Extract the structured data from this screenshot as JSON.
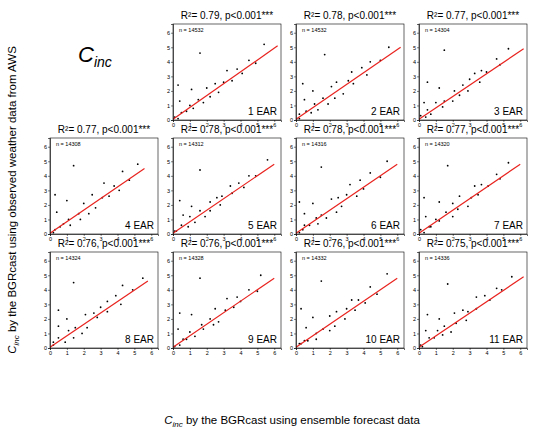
{
  "figure": {
    "title": {
      "symbol": "C",
      "subscript": "inc"
    },
    "x_label": {
      "symbol": "C",
      "subscript": "inc",
      "text": " by the BGRcast using ensemble forecast data"
    },
    "y_label": {
      "symbol": "C",
      "subscript": "inc",
      "text": " by the BGRcast using observed weather data from AWS"
    }
  },
  "chart_data": [
    {
      "type": "scatter",
      "title": "R²= 0.79,  p<0.001***",
      "label": "1 EAR",
      "annotation": "n = 14532",
      "color": "#000000",
      "xlim": [
        0,
        6.4
      ],
      "ylim": [
        0,
        6.6
      ],
      "xticks": [
        0,
        1,
        2,
        3,
        4,
        5,
        6
      ],
      "yticks": [
        0,
        1,
        2,
        3,
        4,
        5,
        6
      ],
      "x": [
        0.1,
        0.3,
        0.5,
        0.4,
        0.8,
        1.0,
        1.2,
        1.1,
        1.5,
        1.8,
        2.0,
        2.2,
        2.5,
        2.7,
        3.0,
        3.2,
        3.5,
        3.8,
        4.1,
        4.5,
        4.9,
        5.4,
        0.3,
        1.6
      ],
      "y": [
        0.2,
        0.1,
        0.5,
        1.3,
        0.6,
        1.0,
        0.8,
        2.1,
        1.4,
        1.2,
        2.2,
        1.6,
        2.5,
        1.9,
        2.6,
        3.4,
        2.7,
        3.5,
        3.2,
        4.1,
        3.9,
        5.2,
        2.4,
        4.6
      ],
      "fit": {
        "x": [
          0,
          6.2
        ],
        "y": [
          0.05,
          5.1
        ],
        "color": "#e8231f"
      }
    },
    {
      "type": "scatter",
      "title": "R²= 0.78,  p<0.001***",
      "label": "2 EAR",
      "annotation": "n = 14532",
      "color": "#000000",
      "xlim": [
        0,
        6.4
      ],
      "ylim": [
        0,
        6.6
      ],
      "xticks": [
        0,
        1,
        2,
        3,
        4,
        5,
        6
      ],
      "yticks": [
        0,
        1,
        2,
        3,
        4,
        5,
        6
      ],
      "x": [
        0.2,
        0.2,
        0.6,
        0.5,
        0.9,
        1.1,
        1.3,
        1.0,
        1.6,
        1.9,
        2.1,
        2.3,
        2.4,
        2.8,
        3.1,
        3.3,
        3.4,
        3.9,
        4.2,
        4.4,
        5.0,
        5.5,
        0.4,
        1.7
      ],
      "y": [
        0.1,
        0.4,
        0.6,
        1.4,
        0.5,
        1.1,
        0.7,
        2.0,
        1.5,
        1.1,
        2.3,
        1.5,
        2.6,
        1.8,
        2.7,
        3.3,
        2.5,
        3.6,
        3.1,
        4.0,
        4.1,
        5.0,
        2.5,
        4.5
      ],
      "fit": {
        "x": [
          0,
          6.2
        ],
        "y": [
          0.05,
          5.0
        ],
        "color": "#e8231f"
      }
    },
    {
      "type": "scatter",
      "title": "R²= 0.77,  p<0.001***",
      "label": "3 EAR",
      "annotation": "n = 14304",
      "color": "#000000",
      "xlim": [
        0,
        6.4
      ],
      "ylim": [
        0,
        6.6
      ],
      "xticks": [
        0,
        1,
        2,
        3,
        4,
        5,
        6
      ],
      "yticks": [
        0,
        1,
        2,
        3,
        4,
        5,
        6
      ],
      "x": [
        0.1,
        0.4,
        0.5,
        0.3,
        0.7,
        1.0,
        1.4,
        1.2,
        1.5,
        2.0,
        2.1,
        2.4,
        2.6,
        2.9,
        3.0,
        3.3,
        3.6,
        3.7,
        4.0,
        4.6,
        4.8,
        5.3,
        0.5,
        1.5
      ],
      "y": [
        0.3,
        0.2,
        0.7,
        1.2,
        0.4,
        1.2,
        0.9,
        2.2,
        1.3,
        1.3,
        2.0,
        1.7,
        2.4,
        2.0,
        2.8,
        3.2,
        2.6,
        3.4,
        3.3,
        4.2,
        3.8,
        4.9,
        2.6,
        4.8
      ],
      "fit": {
        "x": [
          0,
          6.2
        ],
        "y": [
          0.05,
          4.9
        ],
        "color": "#e8231f"
      }
    },
    {
      "type": "scatter",
      "title": "R²= 0.77,  p<0.001***",
      "label": "4 EAR",
      "annotation": "n = 14308",
      "color": "#000000",
      "xlim": [
        0,
        6.4
      ],
      "ylim": [
        0,
        6.6
      ],
      "xticks": [
        0,
        1,
        2,
        3,
        4,
        5,
        6
      ],
      "yticks": [
        0,
        1,
        2,
        3,
        4,
        5,
        6
      ],
      "x": [
        0.2,
        0.3,
        0.6,
        0.4,
        0.8,
        1.1,
        1.2,
        1.0,
        1.7,
        1.8,
        2.0,
        2.3,
        2.5,
        2.7,
        3.1,
        3.2,
        3.5,
        3.8,
        4.1,
        4.3,
        4.7,
        5.2,
        0.3,
        1.4
      ],
      "y": [
        0.1,
        0.3,
        0.5,
        1.5,
        0.7,
        1.0,
        0.6,
        2.3,
        1.4,
        1.0,
        2.1,
        1.4,
        2.7,
        1.8,
        2.5,
        3.5,
        2.6,
        3.3,
        3.0,
        4.3,
        3.7,
        4.8,
        2.7,
        4.7
      ],
      "fit": {
        "x": [
          0,
          5.6
        ],
        "y": [
          0.05,
          4.5
        ],
        "color": "#e8231f"
      }
    },
    {
      "type": "scatter",
      "title": "R²= 0.78,  p<0.001***",
      "label": "5 EAR",
      "annotation": "n = 14312",
      "color": "#000000",
      "xlim": [
        0,
        6.4
      ],
      "ylim": [
        0,
        6.6
      ],
      "xticks": [
        0,
        1,
        2,
        3,
        4,
        5,
        6
      ],
      "yticks": [
        0,
        1,
        2,
        3,
        4,
        5,
        6
      ],
      "x": [
        0.1,
        0.2,
        0.5,
        0.6,
        0.9,
        1.0,
        1.3,
        1.1,
        1.6,
        1.9,
        2.2,
        2.2,
        2.6,
        2.8,
        2.9,
        3.4,
        3.5,
        3.9,
        4.2,
        4.5,
        4.9,
        5.6,
        0.4,
        1.6
      ],
      "y": [
        0.2,
        0.2,
        0.6,
        1.3,
        0.5,
        1.2,
        0.8,
        1.9,
        1.6,
        1.2,
        2.2,
        1.6,
        2.5,
        2.0,
        2.6,
        3.3,
        2.8,
        3.5,
        3.2,
        4.0,
        4.0,
        5.1,
        2.3,
        4.4
      ],
      "fit": {
        "x": [
          0,
          6.0
        ],
        "y": [
          0.05,
          4.8
        ],
        "color": "#e8231f"
      }
    },
    {
      "type": "scatter",
      "title": "R²= 0.78,  p<0.001***",
      "label": "6 EAR",
      "annotation": "n = 14316",
      "color": "#000000",
      "xlim": [
        0,
        6.4
      ],
      "ylim": [
        0,
        6.6
      ],
      "xticks": [
        0,
        1,
        2,
        3,
        4,
        5,
        6
      ],
      "yticks": [
        0,
        1,
        2,
        3,
        4,
        5,
        6
      ],
      "x": [
        0.2,
        0.4,
        0.5,
        0.5,
        0.8,
        1.2,
        1.3,
        1.0,
        1.5,
        1.8,
        2.1,
        2.4,
        2.5,
        2.7,
        3.0,
        3.2,
        3.6,
        3.8,
        4.0,
        4.4,
        5.0,
        5.4,
        0.2,
        1.5
      ],
      "y": [
        0.1,
        0.3,
        0.6,
        1.4,
        0.6,
        1.1,
        0.7,
        2.1,
        1.3,
        1.1,
        2.4,
        1.5,
        2.5,
        1.9,
        2.7,
        3.4,
        2.6,
        3.7,
        3.1,
        4.2,
        3.9,
        5.0,
        2.2,
        4.6
      ],
      "fit": {
        "x": [
          0,
          6.0
        ],
        "y": [
          0.05,
          4.8
        ],
        "color": "#e8231f"
      }
    },
    {
      "type": "scatter",
      "title": "R²= 0.77,  p<0.001***",
      "label": "7 EAR",
      "annotation": "n = 14320",
      "color": "#000000",
      "xlim": [
        0,
        6.4
      ],
      "ylim": [
        0,
        6.6
      ],
      "xticks": [
        0,
        1,
        2,
        3,
        4,
        5,
        6
      ],
      "yticks": [
        0,
        1,
        2,
        3,
        4,
        5,
        6
      ],
      "x": [
        0.1,
        0.3,
        0.6,
        0.4,
        0.7,
        1.0,
        1.2,
        1.2,
        1.6,
        2.0,
        2.0,
        2.3,
        2.4,
        2.9,
        3.1,
        3.3,
        3.5,
        3.7,
        4.1,
        4.6,
        4.8,
        5.3,
        0.3,
        1.7
      ],
      "y": [
        0.3,
        0.1,
        0.5,
        1.2,
        0.5,
        1.0,
        0.9,
        2.2,
        1.5,
        1.2,
        2.1,
        1.7,
        2.6,
        1.9,
        2.5,
        3.3,
        2.7,
        3.4,
        3.3,
        4.1,
        3.8,
        4.9,
        2.5,
        4.7
      ],
      "fit": {
        "x": [
          0,
          6.0
        ],
        "y": [
          0.05,
          4.8
        ],
        "color": "#e8231f"
      }
    },
    {
      "type": "scatter",
      "title": "R²= 0.76,  p<0.001***",
      "label": "8 EAR",
      "annotation": "n = 14324",
      "color": "#000000",
      "xlim": [
        0,
        6.4
      ],
      "ylim": [
        0,
        6.6
      ],
      "xticks": [
        0,
        1,
        2,
        3,
        4,
        5,
        6
      ],
      "yticks": [
        0,
        1,
        2,
        3,
        4,
        5,
        6
      ],
      "x": [
        0.2,
        0.2,
        0.5,
        0.5,
        0.9,
        1.1,
        1.4,
        1.0,
        1.5,
        1.9,
        2.1,
        2.2,
        2.6,
        2.8,
        3.0,
        3.4,
        3.4,
        3.9,
        4.2,
        4.3,
        4.9,
        5.5,
        0.5,
        1.4
      ],
      "y": [
        0.2,
        0.4,
        0.7,
        1.5,
        0.4,
        1.2,
        0.7,
        2.0,
        1.4,
        1.0,
        2.3,
        1.4,
        2.4,
        2.1,
        2.8,
        3.2,
        2.5,
        3.6,
        3.0,
        4.3,
        4.0,
        4.8,
        2.6,
        4.5
      ],
      "fit": {
        "x": [
          0,
          5.8
        ],
        "y": [
          0.05,
          4.6
        ],
        "color": "#e8231f"
      }
    },
    {
      "type": "scatter",
      "title": "R²= 0.76,  p<0.001***",
      "label": "9 EAR",
      "annotation": "n = 14328",
      "color": "#000000",
      "xlim": [
        0,
        6.4
      ],
      "ylim": [
        0,
        6.6
      ],
      "xticks": [
        0,
        1,
        2,
        3,
        4,
        5,
        6
      ],
      "yticks": [
        0,
        1,
        2,
        3,
        4,
        5,
        6
      ],
      "x": [
        0.1,
        0.4,
        0.6,
        0.3,
        0.8,
        1.0,
        1.3,
        1.1,
        1.7,
        1.8,
        2.2,
        2.4,
        2.5,
        2.7,
        3.1,
        3.2,
        3.6,
        3.8,
        4.0,
        4.5,
        5.0,
        5.2,
        0.4,
        1.6
      ],
      "y": [
        0.1,
        0.2,
        0.6,
        1.3,
        0.6,
        1.1,
        0.8,
        2.3,
        1.6,
        1.3,
        2.0,
        1.6,
        2.7,
        1.8,
        2.6,
        3.4,
        2.8,
        3.5,
        3.2,
        4.0,
        3.9,
        5.0,
        2.4,
        4.8
      ],
      "fit": {
        "x": [
          0,
          6.0
        ],
        "y": [
          0.05,
          4.8
        ],
        "color": "#e8231f"
      }
    },
    {
      "type": "scatter",
      "title": "R²= 0.76,  p<0.001***",
      "label": "10 EAR",
      "annotation": "n = 14332",
      "color": "#000000",
      "xlim": [
        0,
        6.4
      ],
      "ylim": [
        0,
        6.6
      ],
      "xticks": [
        0,
        1,
        2,
        3,
        4,
        5,
        6
      ],
      "yticks": [
        0,
        1,
        2,
        3,
        4,
        5,
        6
      ],
      "x": [
        0.2,
        0.3,
        0.5,
        0.6,
        0.7,
        1.2,
        1.2,
        1.0,
        1.6,
        2.0,
        2.0,
        2.3,
        2.4,
        2.9,
        3.0,
        3.3,
        3.5,
        3.7,
        4.1,
        4.4,
        4.8,
        5.4,
        0.3,
        1.5
      ],
      "y": [
        0.3,
        0.3,
        0.5,
        1.4,
        0.5,
        1.0,
        0.6,
        2.1,
        1.3,
        1.2,
        2.2,
        1.5,
        2.5,
        2.0,
        2.7,
        3.3,
        2.6,
        3.3,
        3.1,
        4.2,
        3.7,
        5.1,
        2.7,
        4.6
      ],
      "fit": {
        "x": [
          0,
          6.0
        ],
        "y": [
          0.05,
          4.8
        ],
        "color": "#e8231f"
      }
    },
    {
      "type": "scatter",
      "title": "R²= 0.75,  p<0.001***",
      "label": "11 EAR",
      "annotation": "n = 14336",
      "color": "#000000",
      "xlim": [
        0,
        6.4
      ],
      "ylim": [
        0,
        6.6
      ],
      "xticks": [
        0,
        1,
        2,
        3,
        4,
        5,
        6
      ],
      "yticks": [
        0,
        1,
        2,
        3,
        4,
        5,
        6
      ],
      "x": [
        0.1,
        0.2,
        0.6,
        0.4,
        0.9,
        1.1,
        1.4,
        1.2,
        1.5,
        1.9,
        2.1,
        2.2,
        2.6,
        2.8,
        2.9,
        3.4,
        3.4,
        3.9,
        4.2,
        4.6,
        4.9,
        5.5,
        0.5,
        1.7
      ],
      "y": [
        0.2,
        0.1,
        0.7,
        1.2,
        0.7,
        1.2,
        0.9,
        2.0,
        1.5,
        1.1,
        2.4,
        1.7,
        2.6,
        1.9,
        2.5,
        3.5,
        2.7,
        3.6,
        3.3,
        4.1,
        4.0,
        4.9,
        2.3,
        4.4
      ],
      "fit": {
        "x": [
          0,
          6.2
        ],
        "y": [
          0.05,
          4.9
        ],
        "color": "#e8231f"
      }
    }
  ]
}
